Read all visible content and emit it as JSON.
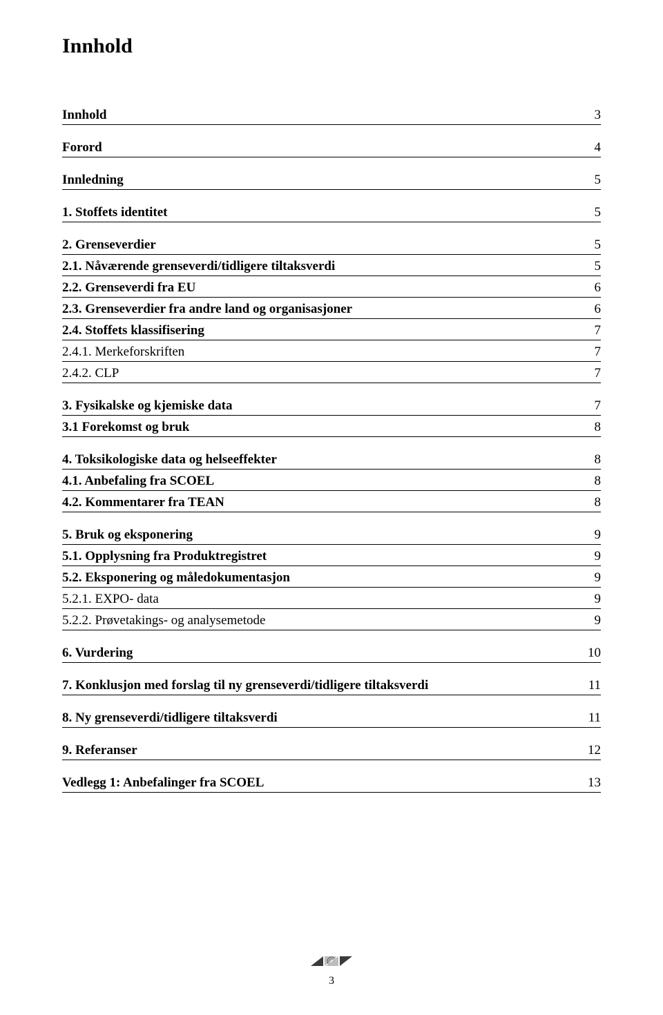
{
  "title": "Innhold",
  "page_number": "3",
  "logo_colors": {
    "dark": "#3a3a3a",
    "light": "#bdbdbd"
  },
  "toc": [
    {
      "level": 1,
      "label": "Innhold",
      "page": "3"
    },
    {
      "level": 1,
      "label": "Forord",
      "page": "4"
    },
    {
      "level": 1,
      "label": "Innledning",
      "page": "5"
    },
    {
      "level": 1,
      "label": "1.   Stoffets identitet",
      "page": "5"
    },
    {
      "level": 1,
      "label": "2.   Grenseverdier",
      "page": "5"
    },
    {
      "level": 2,
      "label": "2.1. Nåværende grenseverdi/tidligere tiltaksverdi",
      "page": "5"
    },
    {
      "level": 2,
      "label": "2.2. Grenseverdi fra EU",
      "page": "6"
    },
    {
      "level": 2,
      "label": "2.3. Grenseverdier fra andre land og organisasjoner",
      "page": "6"
    },
    {
      "level": 2,
      "label": "2.4. Stoffets klassifisering",
      "page": "7"
    },
    {
      "level": 3,
      "label": "2.4.1.      Merkeforskriften",
      "page": "7"
    },
    {
      "level": 3,
      "label": "2.4.2.      CLP",
      "page": "7"
    },
    {
      "level": 1,
      "label": "3.   Fysikalske og kjemiske data",
      "page": "7"
    },
    {
      "level": 2,
      "label": "3.1 Forekomst og bruk",
      "page": "8"
    },
    {
      "level": 1,
      "label": "4.   Toksikologiske data og helseeffekter",
      "page": "8"
    },
    {
      "level": 2,
      "label": "4.1. Anbefaling fra SCOEL",
      "page": "8"
    },
    {
      "level": 2,
      "label": "4.2. Kommentarer fra TEAN",
      "page": "8"
    },
    {
      "level": 1,
      "label": "5.   Bruk og eksponering",
      "page": "9"
    },
    {
      "level": 2,
      "label": "5.1. Opplysning fra Produktregistret",
      "page": "9"
    },
    {
      "level": 2,
      "label": "5.2. Eksponering og måledokumentasjon",
      "page": "9"
    },
    {
      "level": 3,
      "label": "5.2.1.      EXPO- data",
      "page": "9"
    },
    {
      "level": 3,
      "label": "5.2.2.      Prøvetakings- og analysemetode",
      "page": "9"
    },
    {
      "level": 1,
      "label": "6.   Vurdering",
      "page": "10"
    },
    {
      "level": 1,
      "label": "7.   Konklusjon med forslag til ny grenseverdi/tidligere tiltaksverdi",
      "page": "11"
    },
    {
      "level": 1,
      "label": "8.   Ny grenseverdi/tidligere tiltaksverdi",
      "page": "11"
    },
    {
      "level": 1,
      "label": "9.   Referanser",
      "page": "12"
    },
    {
      "level": 1,
      "label": "Vedlegg 1: Anbefalinger fra SCOEL",
      "page": "13"
    }
  ]
}
